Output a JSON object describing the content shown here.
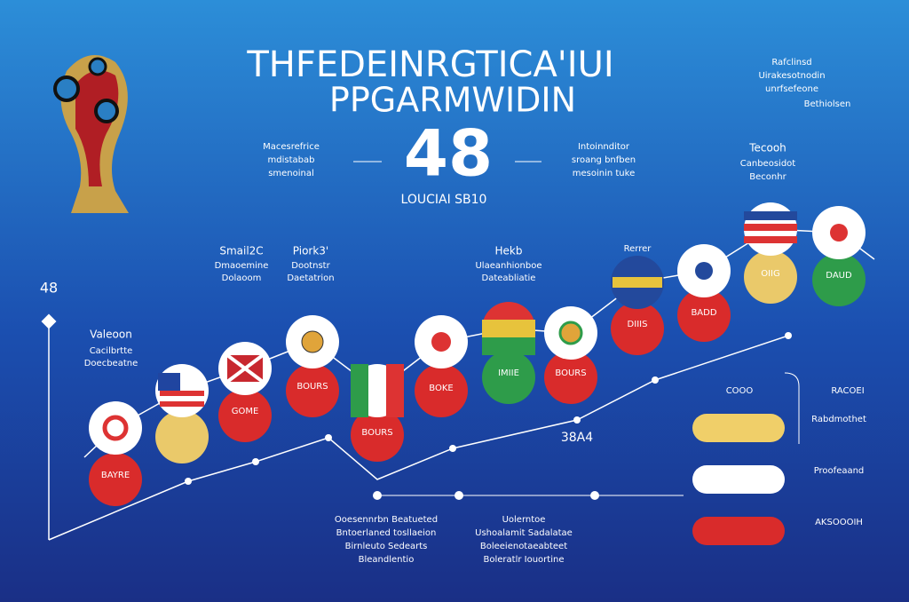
{
  "header": {
    "title_line1": "THFEDEINRGTICA'IUI",
    "title_line2": "PPGARMWIDIN",
    "big_number": "48",
    "subtitle": "LOUCIAI SB10",
    "left_caption": [
      "Macesrefrice",
      "mdistabab",
      "smenoinal"
    ],
    "right_caption": [
      "Intoinnditor",
      "sroang bnfben",
      "mesoinin tuke"
    ],
    "corner_note": [
      "Rafclinsd",
      "Uirakesotnodin",
      "unrfsefeone",
      "Bethiolsen"
    ]
  },
  "chart": {
    "axis_label": "48",
    "mid_label": "38A4",
    "group_labels": [
      {
        "title": "Valeoon",
        "lines": [
          "Cacilbrtte",
          "Doecbeatne"
        ]
      },
      {
        "title": "Smail2C",
        "lines": [
          "Dmaoemine",
          "Dolaoom"
        ]
      },
      {
        "title": "Piork3'",
        "lines": [
          "Dootnstr",
          "Daetatrion"
        ]
      },
      {
        "title": "Hekb",
        "lines": [
          "Ulaeanhionboe",
          "Dateabliatie"
        ]
      },
      {
        "title": "Rerrer",
        "lines": []
      },
      {
        "title": "Tecooh",
        "lines": [
          "Canbeosidot",
          "Beconhr"
        ]
      }
    ],
    "circle_labels": [
      "BAYRE",
      "GOME",
      "BOURS",
      "BOURS",
      "BOKE",
      "BOURS",
      "IMIIE",
      "DIIIS",
      "BADD",
      "DAUD",
      "OIIG"
    ]
  },
  "legend": {
    "col_left": "COOO",
    "col_right": "RACOEI",
    "items": [
      "Rabdmothet",
      "Proofeaand",
      "AKSOOOIH"
    ]
  },
  "footnotes": {
    "left": [
      "Ooesennrbn Beatueted",
      "Bntoerlaned tosllaeion",
      "Birnleuto Sedearts",
      "Bleandlentio"
    ],
    "right": [
      "Uolerntoe",
      "Ushoalamit Sadalatae",
      "Boleeienotaeabteet",
      "Boleratlr Iouortine"
    ]
  }
}
